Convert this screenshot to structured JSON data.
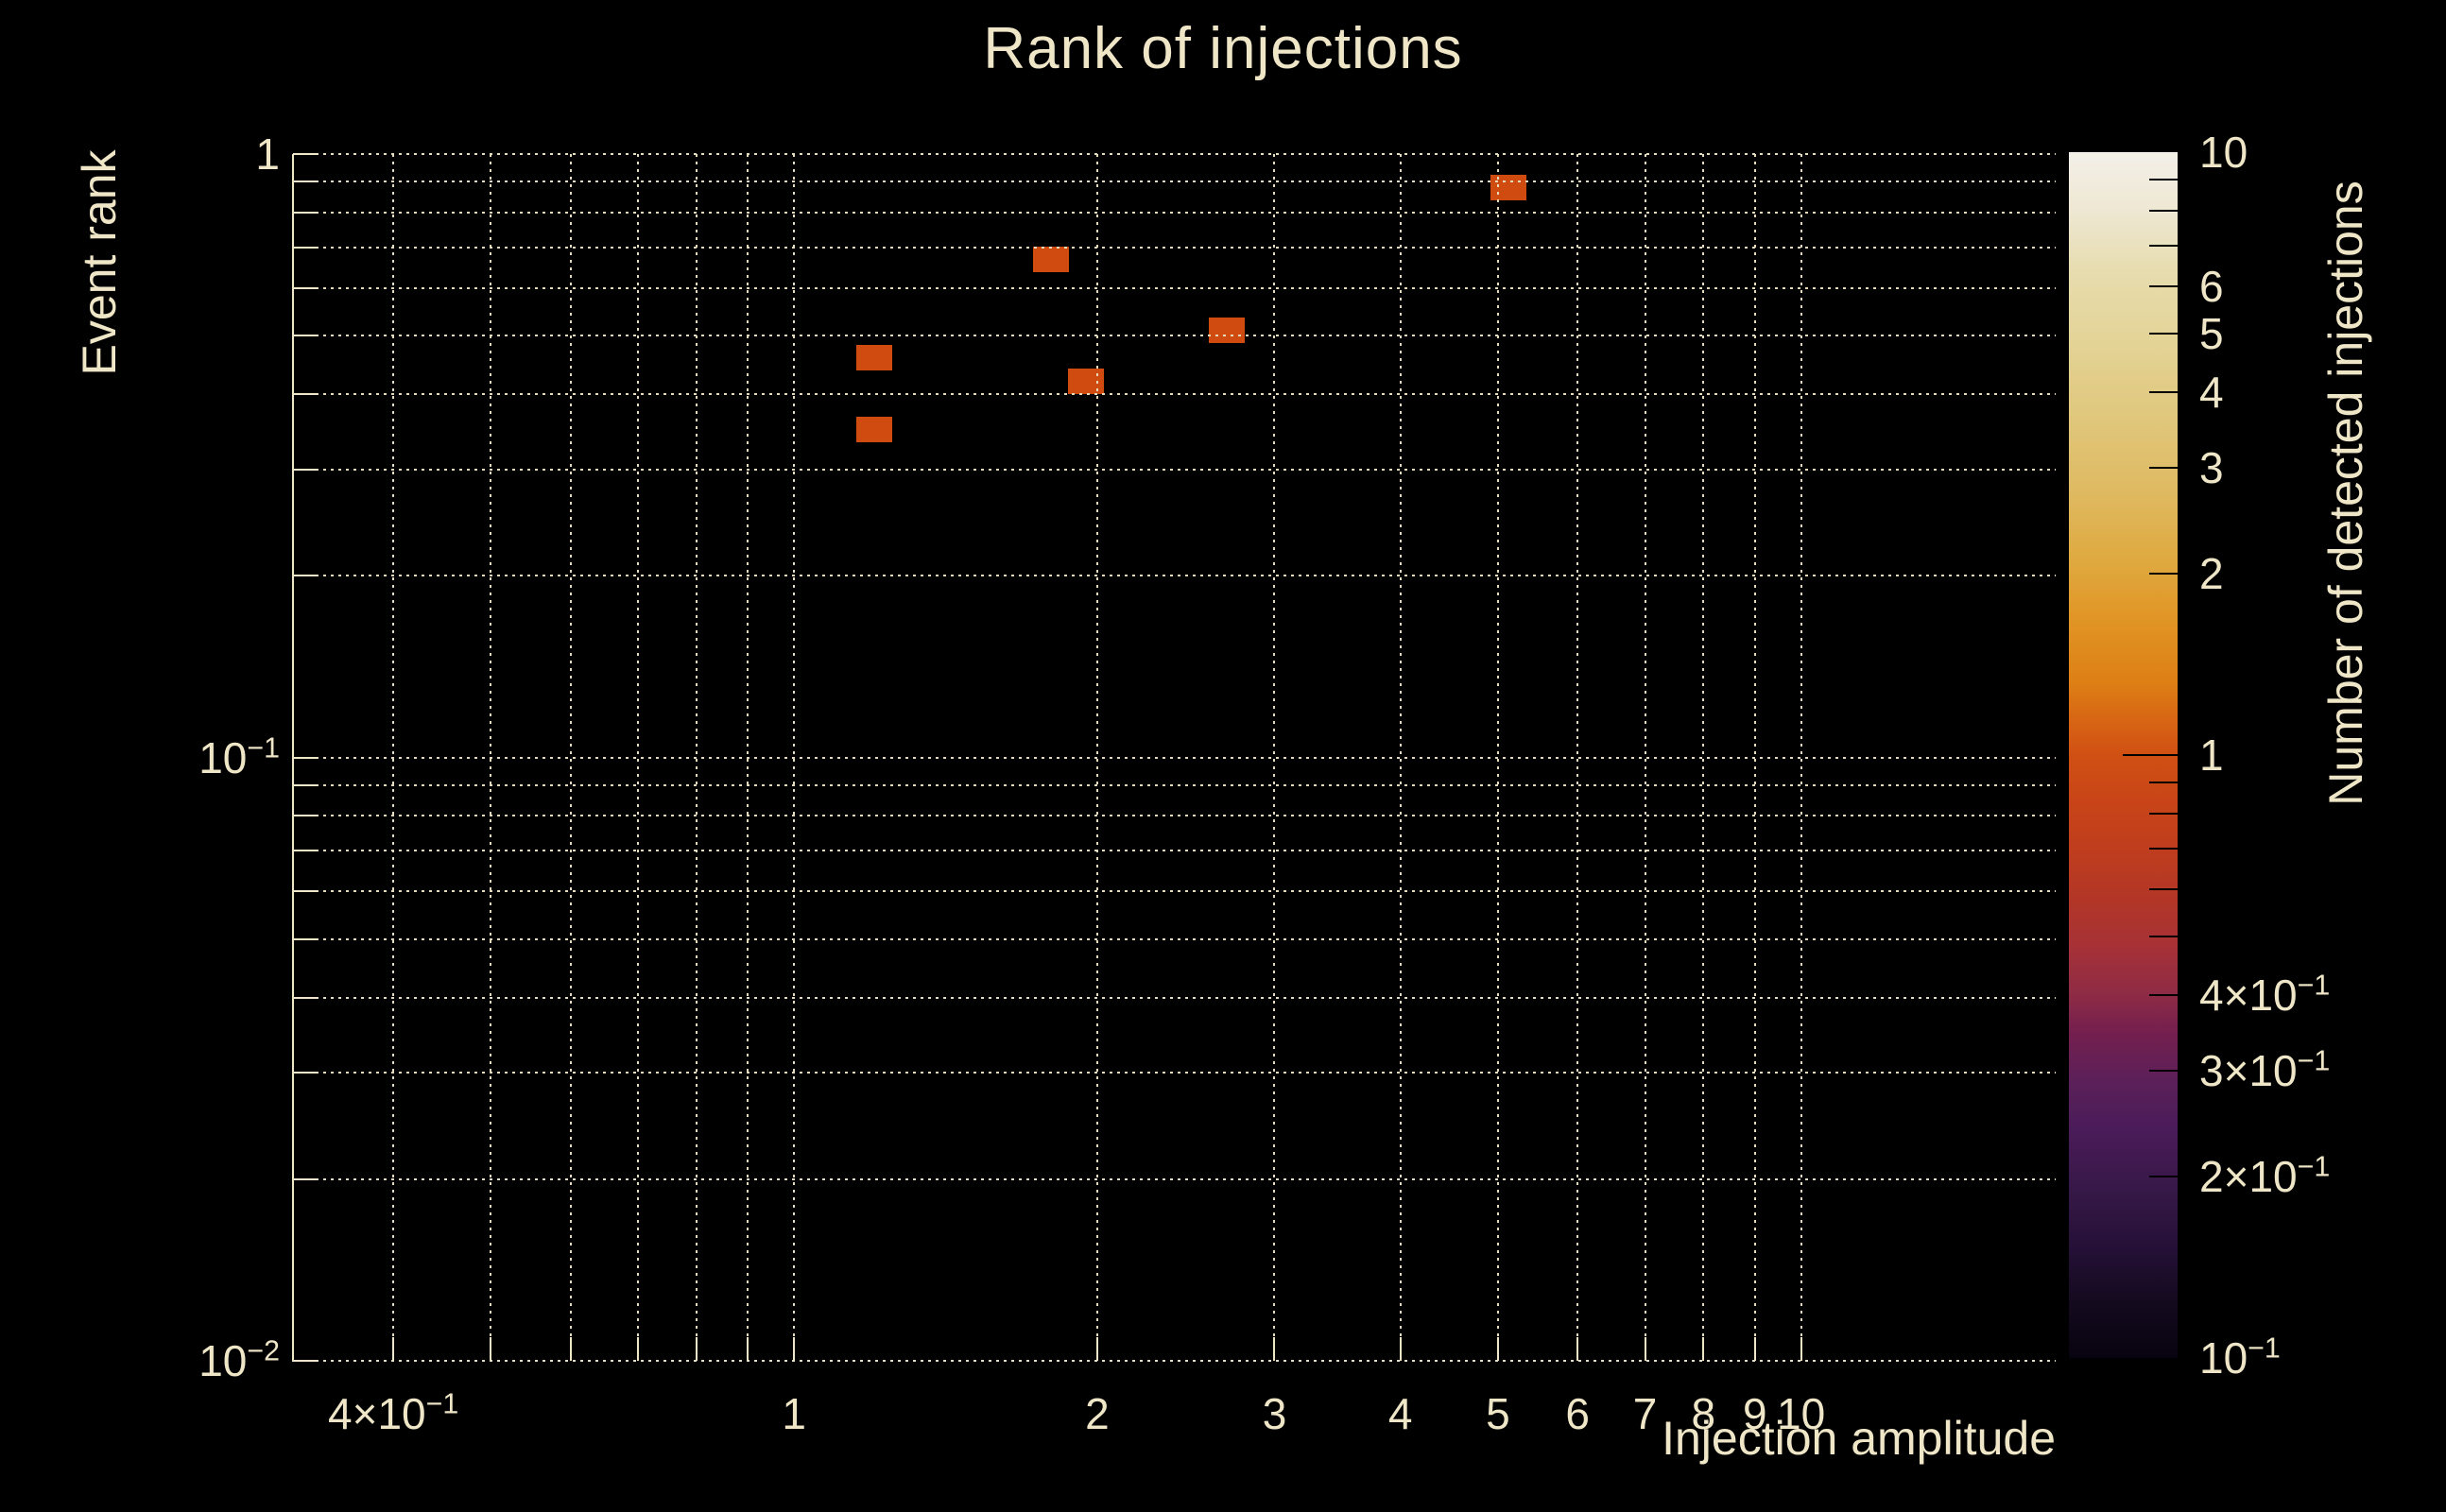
{
  "figure_title": "Rank of injections",
  "palette": {
    "background": "#000000",
    "text": "#efe6c8",
    "grid": "#e4dbbd",
    "axis": "#efe6c8",
    "bin_fill": "#d04b10",
    "colorbar_tick": "#000000"
  },
  "chart_data": {
    "type": "heatmap",
    "title": "Rank of injections",
    "xlabel": "Injection amplitude",
    "ylabel": "Event rank",
    "colorbar_label": "Number of detected injections",
    "xscale": "log",
    "yscale": "log",
    "colorbar_scale": "log",
    "xlim": [
      0.318,
      17.9
    ],
    "ylim": [
      0.01,
      1.0
    ],
    "colorbar_lim": [
      0.1,
      10
    ],
    "grid": "dotted",
    "legend": "none",
    "points": [
      {
        "x": 1.2,
        "y": 0.46,
        "count": 1
      },
      {
        "x": 1.2,
        "y": 0.35,
        "count": 1
      },
      {
        "x": 1.8,
        "y": 0.67,
        "count": 1
      },
      {
        "x": 1.95,
        "y": 0.42,
        "count": 1
      },
      {
        "x": 2.69,
        "y": 0.51,
        "count": 1
      },
      {
        "x": 5.12,
        "y": 0.88,
        "count": 1
      }
    ],
    "x_grid_values": [
      0.4,
      0.5,
      0.6,
      0.7,
      0.8,
      0.9,
      1,
      2,
      3,
      4,
      5,
      6,
      7,
      8,
      9,
      10
    ],
    "y_grid_values": [
      1,
      0.9,
      0.8,
      0.7,
      0.6,
      0.5,
      0.4,
      0.3,
      0.2,
      0.1,
      0.09,
      0.08,
      0.07,
      0.06,
      0.05,
      0.04,
      0.03,
      0.02,
      0.01
    ],
    "x_tick_labels": [
      {
        "v": 0.4,
        "label": "4×10^−1"
      },
      {
        "v": 1,
        "label": "1"
      },
      {
        "v": 2,
        "label": "2"
      },
      {
        "v": 3,
        "label": "3"
      },
      {
        "v": 4,
        "label": "4"
      },
      {
        "v": 5,
        "label": "5"
      },
      {
        "v": 6,
        "label": "6"
      },
      {
        "v": 7,
        "label": "7"
      },
      {
        "v": 8,
        "label": "8"
      },
      {
        "v": 9,
        "label": "9"
      },
      {
        "v": 10,
        "label": "10"
      }
    ],
    "y_tick_labels": [
      {
        "v": 1,
        "label": "1"
      },
      {
        "v": 0.1,
        "label": "10^−1"
      },
      {
        "v": 0.01,
        "label": "10^−2"
      }
    ],
    "colorbar_tick_values": [
      9,
      8,
      7,
      6,
      5,
      4,
      3,
      2,
      1,
      0.9,
      0.8,
      0.7,
      0.6,
      0.5,
      0.4,
      0.3,
      0.2
    ],
    "colorbar_major_tick_values": [
      1
    ],
    "colorbar_labels": [
      {
        "v": 10,
        "label": "10"
      },
      {
        "v": 6,
        "label": "6"
      },
      {
        "v": 5,
        "label": "5"
      },
      {
        "v": 4,
        "label": "4"
      },
      {
        "v": 3,
        "label": "3"
      },
      {
        "v": 2,
        "label": "2"
      },
      {
        "v": 1,
        "label": "1"
      },
      {
        "v": 0.4,
        "label": "4×10^−1"
      },
      {
        "v": 0.3,
        "label": "3×10^−1"
      },
      {
        "v": 0.2,
        "label": "2×10^−1"
      },
      {
        "v": 0.1,
        "label": "10^−1"
      }
    ],
    "colormap_stops": [
      [
        "0%",
        "#070310"
      ],
      [
        "4.5%",
        "#140a1e"
      ],
      [
        "9%",
        "#241036"
      ],
      [
        "14%",
        "#371848"
      ],
      [
        "19%",
        "#4a1c59"
      ],
      [
        "23%",
        "#5c2059"
      ],
      [
        "27%",
        "#741f4e"
      ],
      [
        "30%",
        "#8d2b46"
      ],
      [
        "34%",
        "#a63137"
      ],
      [
        "38%",
        "#b23627"
      ],
      [
        "42%",
        "#bf3d1e"
      ],
      [
        "46%",
        "#c84418"
      ],
      [
        "50%",
        "#d05013"
      ],
      [
        "53%",
        "#d86614"
      ],
      [
        "56%",
        "#dd7f15"
      ],
      [
        "61%",
        "#e09424"
      ],
      [
        "66%",
        "#dfa93f"
      ],
      [
        "72%",
        "#dfba62"
      ],
      [
        "78%",
        "#e0c77c"
      ],
      [
        "84%",
        "#e3d395"
      ],
      [
        "90%",
        "#e7dcae"
      ],
      [
        "95%",
        "#eee7d2"
      ],
      [
        "100%",
        "#f3f0e9"
      ]
    ]
  }
}
